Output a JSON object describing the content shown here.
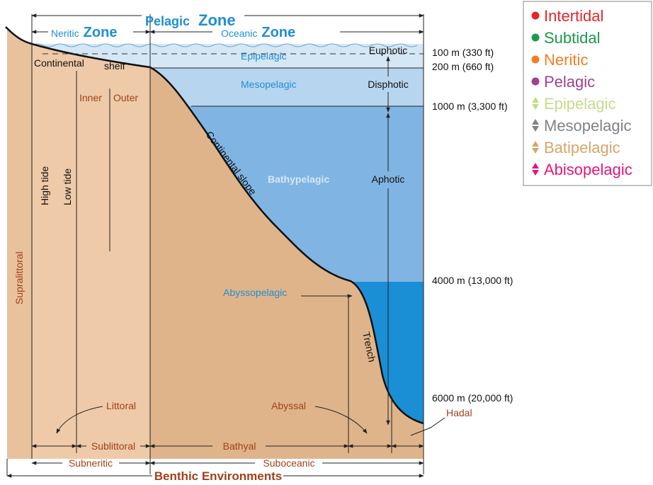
{
  "zones": {
    "pelagic": {
      "name": "Pelagic",
      "word": "Zone"
    },
    "neritic": {
      "name": "Neritic",
      "word": "Zone"
    },
    "oceanic": {
      "name": "Oceanic",
      "word": "Zone"
    }
  },
  "water_layers": {
    "epipelagic": "Epipelagic",
    "mesopelagic": "Mesopelagic",
    "bathypelagic": "Bathypelagic",
    "abyssopelagic": "Abyssopelagic"
  },
  "light": {
    "euphotic": "Euphotic",
    "disphotic": "Disphotic",
    "aphotic": "Aphotic"
  },
  "seafloor": {
    "continental": "Continental",
    "shelf": "shelf",
    "inner": "Inner",
    "outer": "Outer",
    "high_tide": "High tide",
    "low_tide": "Low tide",
    "supralittoral": "Supralittoral",
    "slope": "Continental slope",
    "trench": "Trench",
    "littoral": "Littoral",
    "abyssal": "Abyssal",
    "hadal": "Hadal"
  },
  "depths": [
    "100 m (330 ft)",
    "200 m (660 ft)",
    "1000 m (3,300 ft)",
    "4000 m (13,000 ft)",
    "6000 m (20,000 ft)"
  ],
  "benthic": {
    "sublittoral": "Sublittoral",
    "bathyal": "Bathyal",
    "subneritic": "Subneritic",
    "suboceanic": "Suboceanic",
    "title": "Benthic Environments"
  },
  "legend": [
    {
      "label": "Intertidal",
      "color": "#e3262a",
      "marker": "dot"
    },
    {
      "label": "Subtidal",
      "color": "#1a9a4a",
      "marker": "dot"
    },
    {
      "label": "Neritic",
      "color": "#f07f22",
      "marker": "dot"
    },
    {
      "label": "Pelagic",
      "color": "#a0418f",
      "marker": "dot"
    },
    {
      "label": "Epipelagic",
      "color": "#c5dc8a",
      "marker": "arrow"
    },
    {
      "label": "Mesopelagic",
      "color": "#808285",
      "marker": "arrow"
    },
    {
      "label": "Batipelagic",
      "color": "#d6a56a",
      "marker": "arrow"
    },
    {
      "label": "Abisopelagic",
      "color": "#e5157f",
      "marker": "arrow"
    }
  ]
}
